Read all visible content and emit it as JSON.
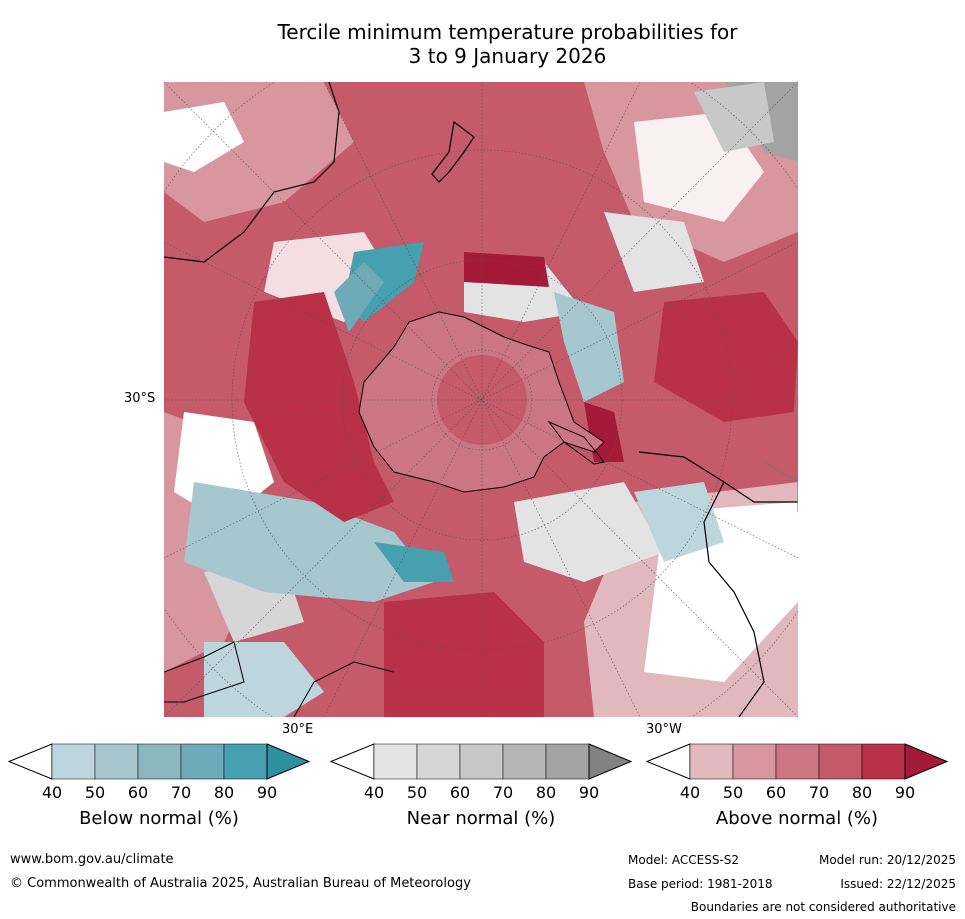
{
  "title": {
    "line1": "Tercile minimum temperature probabilities for",
    "line2": "3 to 9 January 2026"
  },
  "map": {
    "projection": "south-polar stereographic",
    "labels": {
      "lat_30s": "30°S",
      "lon_30e": "30°E",
      "lon_30w": "30°W"
    },
    "colors": {
      "above": [
        "#e0b8be",
        "#d8979f",
        "#cd7683",
        "#c45a6a",
        "#b93049",
        "#a51a38"
      ],
      "near": [
        "#e3e3e3",
        "#d6d6d6",
        "#c8c8c8",
        "#b6b6b6",
        "#a3a3a3",
        "#828282"
      ],
      "below": [
        "#bdd5dc",
        "#a7c7cf",
        "#8cb7c1",
        "#6eaab7",
        "#46a0b0",
        "#2e8fa3"
      ]
    }
  },
  "colorbars": [
    {
      "key": "below",
      "label": "Below normal (%)",
      "ticks": [
        "40",
        "50",
        "60",
        "70",
        "80",
        "90"
      ],
      "colors": [
        "#ffffff",
        "#bdd5dc",
        "#a7c7cf",
        "#8cb7c1",
        "#6eaab7",
        "#46a0b0",
        "#2e8fa3"
      ]
    },
    {
      "key": "near",
      "label": "Near normal (%)",
      "ticks": [
        "40",
        "50",
        "60",
        "70",
        "80",
        "90"
      ],
      "colors": [
        "#ffffff",
        "#e3e3e3",
        "#d6d6d6",
        "#c8c8c8",
        "#b6b6b6",
        "#a3a3a3",
        "#828282"
      ]
    },
    {
      "key": "above",
      "label": "Above normal (%)",
      "ticks": [
        "40",
        "50",
        "60",
        "70",
        "80",
        "90"
      ],
      "colors": [
        "#ffffff",
        "#e0b8be",
        "#d8979f",
        "#cd7683",
        "#c45a6a",
        "#b93049",
        "#a51a38"
      ]
    }
  ],
  "footer": {
    "website": "www.bom.gov.au/climate",
    "copyright": "© Commonwealth of Australia 2025, Australian Bureau of Meteorology",
    "model": "Model: ACCESS-S2",
    "base_period": "Base period: 1981-2018",
    "model_run": "Model run: 20/12/2025",
    "issued": "Issued: 22/12/2025",
    "disclaimer": "Boundaries are not considered authoritative"
  }
}
